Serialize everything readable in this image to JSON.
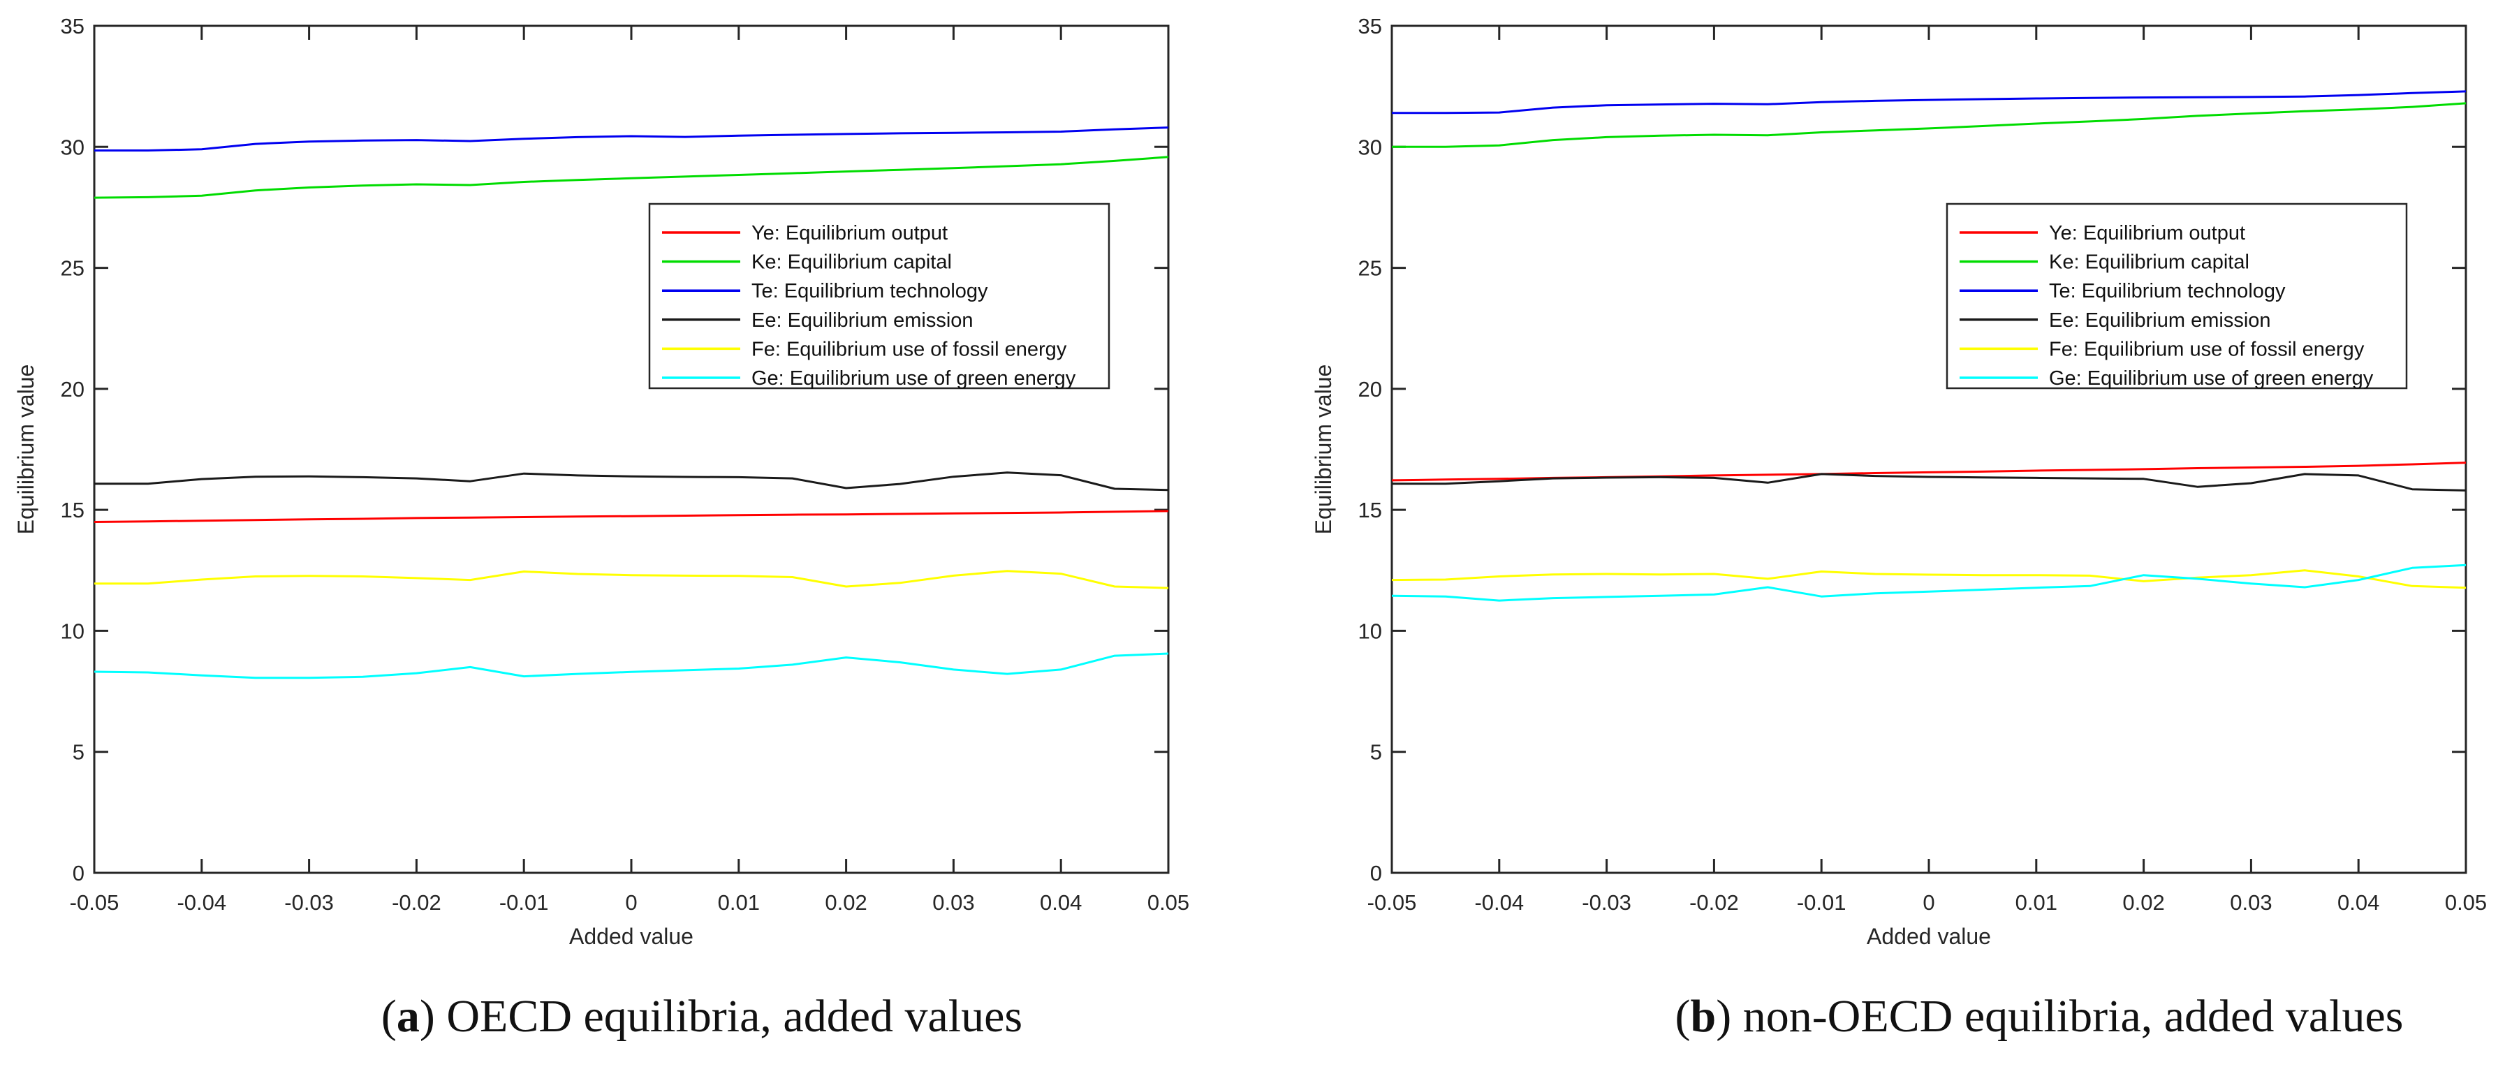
{
  "figure": {
    "background": "#ffffff",
    "axis_color": "#262626",
    "tick_label_color": "#262626",
    "captions": [
      {
        "open": "(",
        "letter": "a",
        "close": ")",
        "rest": " OECD equilibria, added values"
      },
      {
        "open": "(",
        "letter": "b",
        "close": ")",
        "rest": " non-OECD equilibria, added values"
      }
    ]
  },
  "chart_data": [
    {
      "type": "line",
      "title": "",
      "xlabel": "Added value",
      "ylabel": "Equilibrium value",
      "xlim": [
        -0.05,
        0.05
      ],
      "ylim": [
        0,
        35
      ],
      "grid": false,
      "legend_position": "upper right inside",
      "xtick_labels": [
        "-0.05",
        "-0.04",
        "-0.03",
        "-0.02",
        "-0.01",
        "0",
        "0.01",
        "0.02",
        "0.03",
        "0.04",
        "0.05"
      ],
      "xticks": [
        -0.05,
        -0.04,
        -0.03,
        -0.02,
        -0.01,
        0,
        0.01,
        0.02,
        0.03,
        0.04,
        0.05
      ],
      "ytick_labels": [
        "0",
        "5",
        "10",
        "15",
        "20",
        "25",
        "30",
        "35"
      ],
      "yticks": [
        0,
        5,
        10,
        15,
        20,
        25,
        30,
        35
      ],
      "x": [
        -0.05,
        -0.045,
        -0.04,
        -0.035,
        -0.03,
        -0.025,
        -0.02,
        -0.015,
        -0.01,
        -0.005,
        0,
        0.005,
        0.01,
        0.015,
        0.02,
        0.025,
        0.03,
        0.035,
        0.04,
        0.045,
        0.05
      ],
      "series": [
        {
          "name": "Ye: Equilibrium output",
          "color": "#ff0000",
          "values": [
            14.5,
            14.52,
            14.55,
            14.58,
            14.61,
            14.63,
            14.66,
            14.68,
            14.7,
            14.72,
            14.74,
            14.76,
            14.78,
            14.8,
            14.81,
            14.83,
            14.85,
            14.87,
            14.89,
            14.92,
            14.95
          ]
        },
        {
          "name": "Ke: Equilibrium capital",
          "color": "#00dc00",
          "values": [
            27.9,
            27.92,
            27.98,
            28.2,
            28.32,
            28.4,
            28.45,
            28.42,
            28.55,
            28.63,
            28.7,
            28.77,
            28.84,
            28.91,
            28.98,
            29.05,
            29.12,
            29.2,
            29.28,
            29.42,
            29.58
          ]
        },
        {
          "name": "Te: Equilibrium technology",
          "color": "#0000f0",
          "values": [
            29.85,
            29.85,
            29.9,
            30.12,
            30.22,
            30.26,
            30.28,
            30.24,
            30.33,
            30.4,
            30.44,
            30.41,
            30.46,
            30.5,
            30.53,
            30.56,
            30.58,
            30.6,
            30.63,
            30.72,
            30.8
          ]
        },
        {
          "name": "Ee: Equilibrium emission",
          "color": "#1a1a1a",
          "values": [
            16.08,
            16.08,
            16.27,
            16.37,
            16.38,
            16.35,
            16.3,
            16.18,
            16.5,
            16.42,
            16.38,
            16.36,
            16.35,
            16.3,
            15.9,
            16.07,
            16.37,
            16.54,
            16.43,
            15.87,
            15.82
          ]
        },
        {
          "name": "Fe: Equilibrium use of fossil energy",
          "color": "#ffff00",
          "values": [
            11.95,
            11.95,
            12.12,
            12.25,
            12.27,
            12.25,
            12.18,
            12.1,
            12.45,
            12.35,
            12.3,
            12.28,
            12.27,
            12.22,
            11.83,
            11.98,
            12.28,
            12.47,
            12.36,
            11.83,
            11.77
          ]
        },
        {
          "name": "Ge: Equilibrium use of green energy",
          "color": "#00ffff",
          "values": [
            8.31,
            8.28,
            8.16,
            8.06,
            8.06,
            8.1,
            8.25,
            8.5,
            8.12,
            8.22,
            8.3,
            8.37,
            8.44,
            8.6,
            8.9,
            8.7,
            8.4,
            8.22,
            8.4,
            8.97,
            9.06
          ]
        }
      ]
    },
    {
      "type": "line",
      "title": "",
      "xlabel": "Added value",
      "ylabel": "Equilibrium value",
      "xlim": [
        -0.05,
        0.05
      ],
      "ylim": [
        0,
        35
      ],
      "grid": false,
      "legend_position": "upper right inside",
      "xtick_labels": [
        "-0.05",
        "-0.04",
        "-0.03",
        "-0.02",
        "-0.01",
        "0",
        "0.01",
        "0.02",
        "0.03",
        "0.04",
        "0.05"
      ],
      "xticks": [
        -0.05,
        -0.04,
        -0.03,
        -0.02,
        -0.01,
        0,
        0.01,
        0.02,
        0.03,
        0.04,
        0.05
      ],
      "ytick_labels": [
        "0",
        "5",
        "10",
        "15",
        "20",
        "25",
        "30",
        "35"
      ],
      "yticks": [
        0,
        5,
        10,
        15,
        20,
        25,
        30,
        35
      ],
      "x": [
        -0.05,
        -0.045,
        -0.04,
        -0.035,
        -0.03,
        -0.025,
        -0.02,
        -0.015,
        -0.01,
        -0.005,
        0,
        0.005,
        0.01,
        0.015,
        0.02,
        0.025,
        0.03,
        0.035,
        0.04,
        0.045,
        0.05
      ],
      "series": [
        {
          "name": "Ye: Equilibrium output",
          "color": "#ff0000",
          "values": [
            16.22,
            16.25,
            16.28,
            16.32,
            16.35,
            16.38,
            16.42,
            16.45,
            16.48,
            16.52,
            16.55,
            16.58,
            16.62,
            16.65,
            16.68,
            16.72,
            16.75,
            16.78,
            16.82,
            16.88,
            16.95
          ]
        },
        {
          "name": "Ke: Equilibrium capital",
          "color": "#00dc00",
          "values": [
            30.0,
            30.0,
            30.06,
            30.28,
            30.4,
            30.46,
            30.5,
            30.48,
            30.6,
            30.68,
            30.76,
            30.86,
            30.96,
            31.05,
            31.15,
            31.28,
            31.38,
            31.47,
            31.55,
            31.65,
            31.8
          ]
        },
        {
          "name": "Te: Equilibrium technology",
          "color": "#0000f0",
          "values": [
            31.4,
            31.4,
            31.42,
            31.62,
            31.72,
            31.75,
            31.78,
            31.76,
            31.85,
            31.9,
            31.94,
            31.97,
            32.0,
            32.02,
            32.04,
            32.05,
            32.06,
            32.08,
            32.14,
            32.22,
            32.29
          ]
        },
        {
          "name": "Ee: Equilibrium emission",
          "color": "#1a1a1a",
          "values": [
            16.08,
            16.08,
            16.18,
            16.3,
            16.33,
            16.35,
            16.32,
            16.12,
            16.48,
            16.4,
            16.36,
            16.34,
            16.32,
            16.3,
            16.28,
            15.95,
            16.1,
            16.48,
            16.42,
            15.85,
            15.8
          ]
        },
        {
          "name": "Fe: Equilibrium use of fossil energy",
          "color": "#ffff00",
          "values": [
            12.1,
            12.12,
            12.25,
            12.33,
            12.35,
            12.33,
            12.35,
            12.15,
            12.45,
            12.35,
            12.32,
            12.3,
            12.3,
            12.28,
            12.05,
            12.2,
            12.3,
            12.5,
            12.25,
            11.85,
            11.78
          ]
        },
        {
          "name": "Ge: Equilibrium use of green energy",
          "color": "#00ffff",
          "values": [
            11.45,
            11.42,
            11.25,
            11.35,
            11.4,
            11.45,
            11.5,
            11.8,
            11.42,
            11.55,
            11.62,
            11.7,
            11.78,
            11.85,
            12.3,
            12.15,
            11.95,
            11.8,
            12.1,
            12.6,
            12.72
          ]
        }
      ]
    }
  ]
}
